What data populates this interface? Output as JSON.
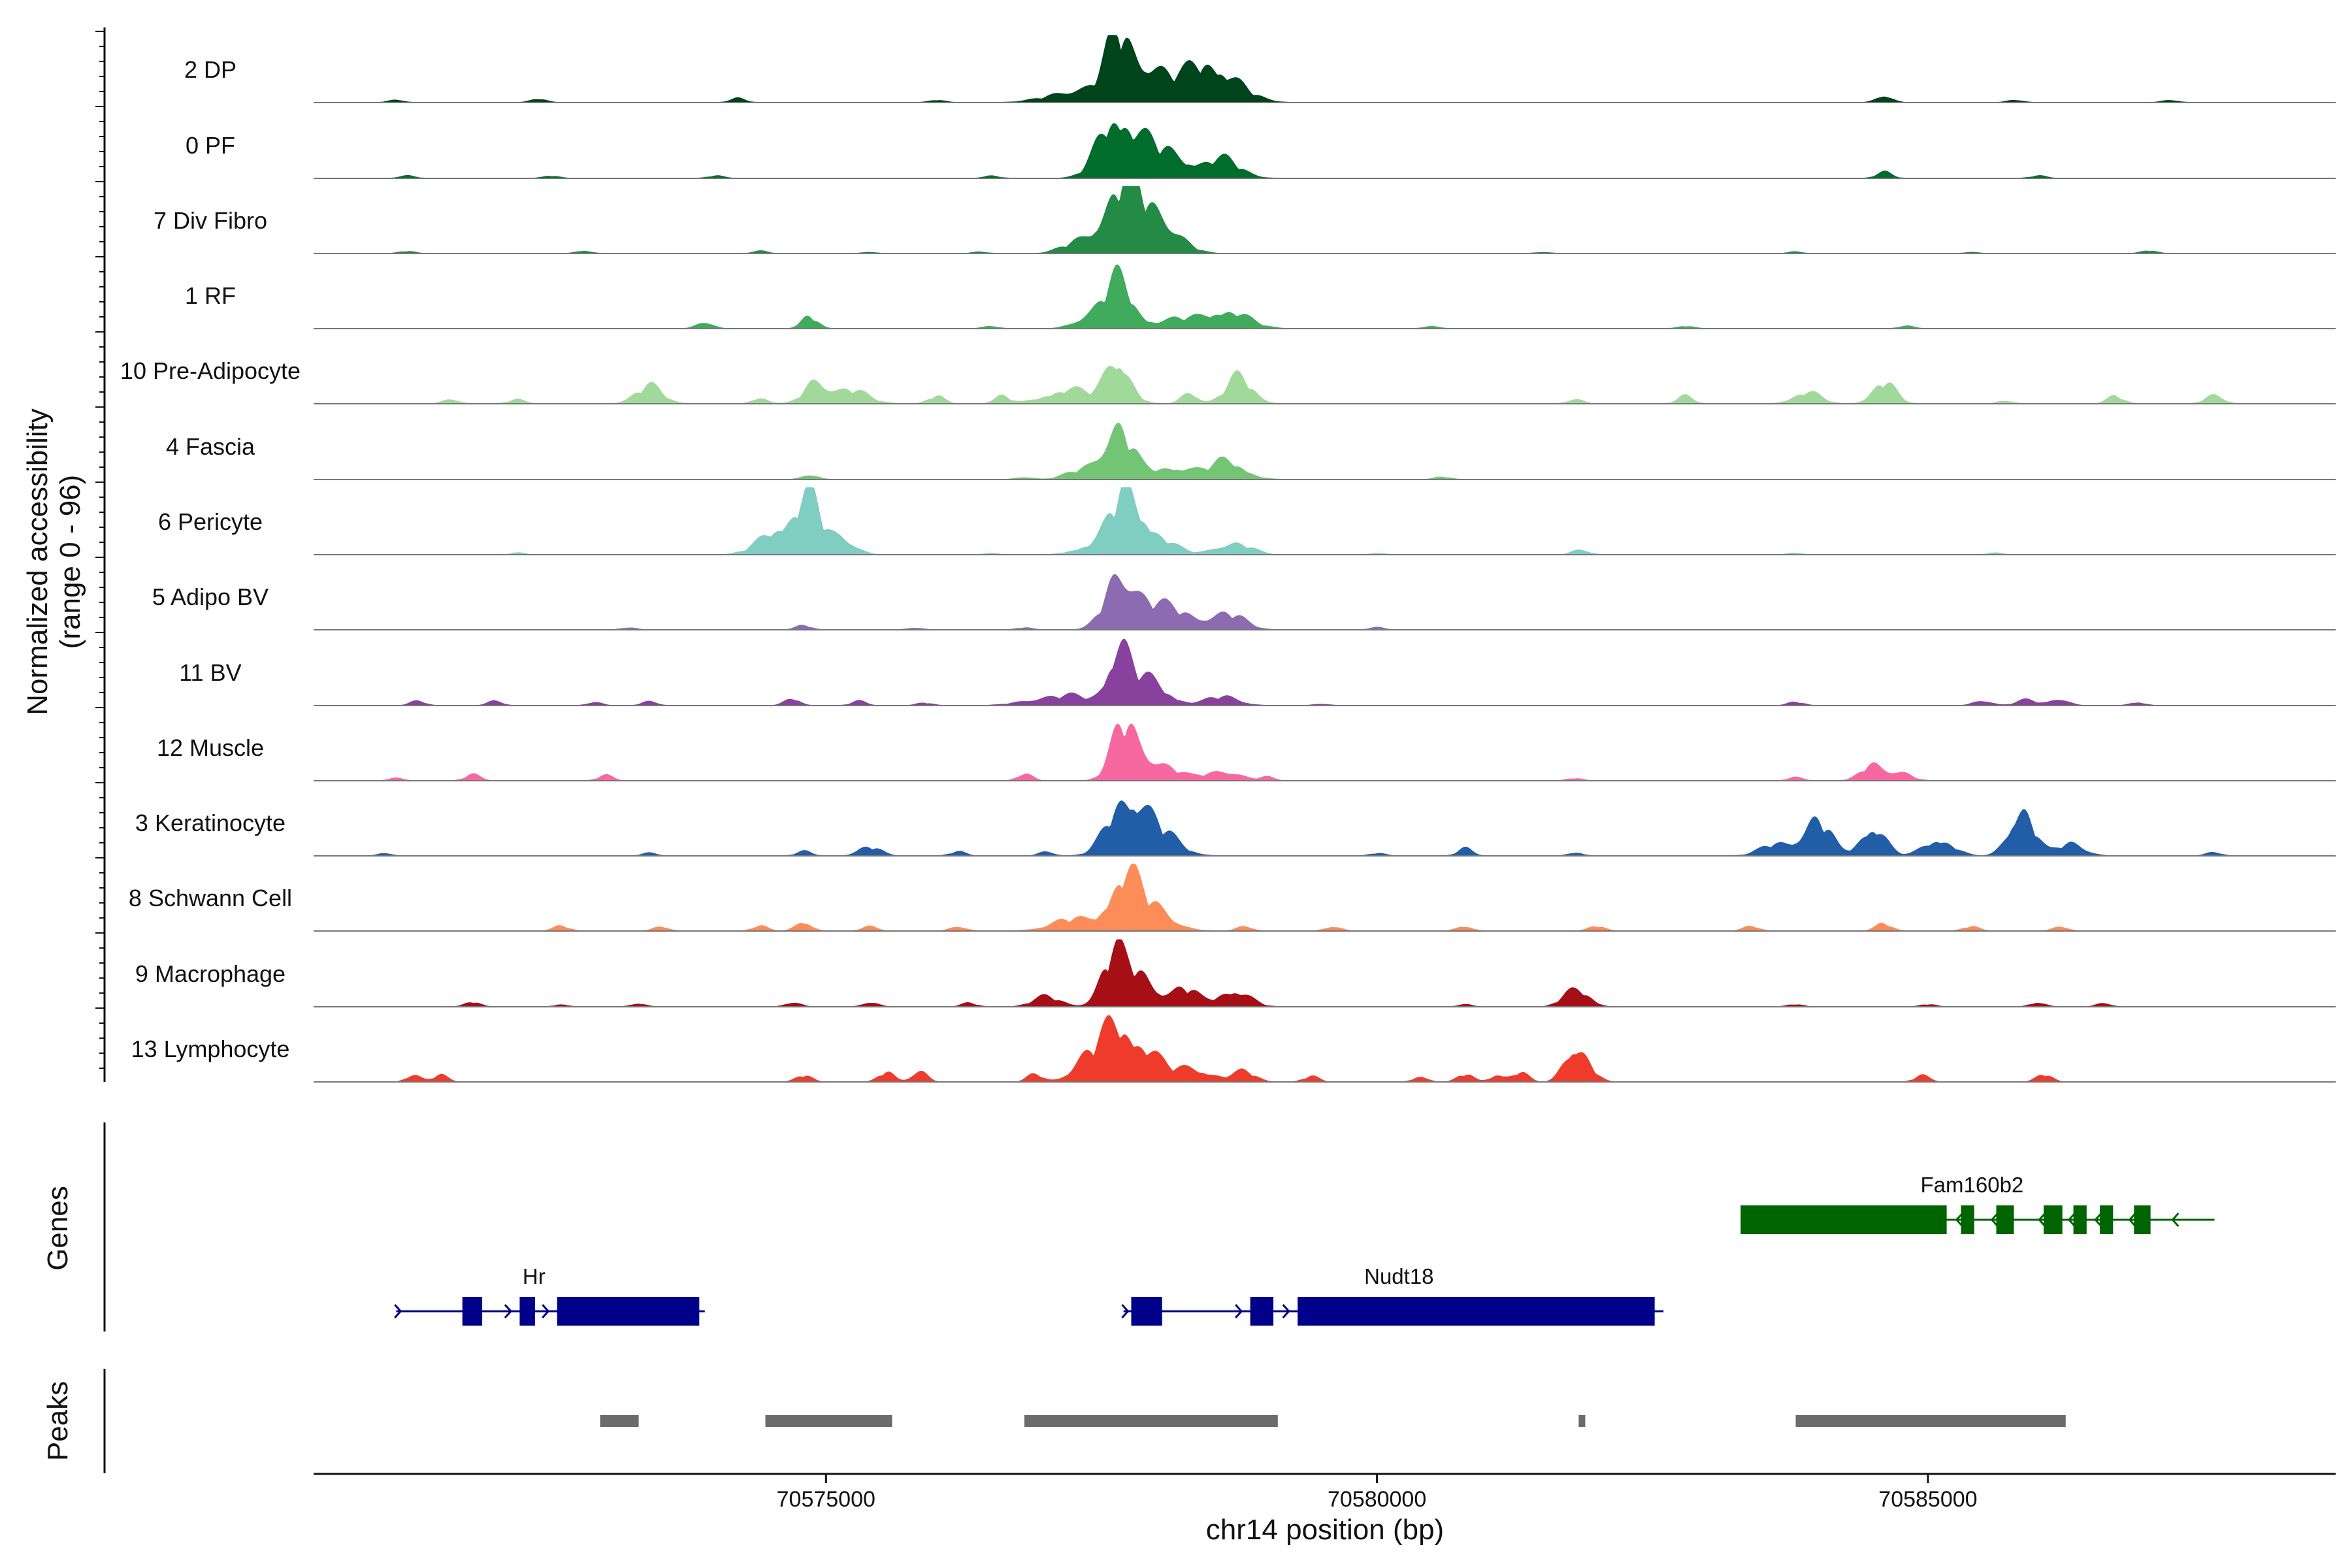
{
  "chart_data": {
    "type": "area",
    "chromosome": "chr14",
    "xlabel": "chr14 position (bp)",
    "xlim": [
      70570350,
      70588700
    ],
    "x_ticks": [
      70575000,
      70580000,
      70585000
    ],
    "x_tick_labels": [
      "70575000",
      "70580000",
      "70585000"
    ],
    "ylabel_line1": "Normalized accessibility",
    "ylabel_line2": "(range 0 - 96)",
    "ylim": [
      0,
      96
    ],
    "genes_label": "Genes",
    "peaks_label": "Peaks",
    "tracks": [
      {
        "name": "2 DP",
        "color": "#00441b",
        "max": 42,
        "peaks": [
          [
            70577650,
            38,
            110
          ],
          [
            70577900,
            30,
            230
          ],
          [
            70578600,
            20,
            200
          ],
          [
            70578400,
            18,
            150
          ],
          [
            70577300,
            10,
            250
          ]
        ],
        "noise": [
          [
            70571100,
            2
          ],
          [
            70572400,
            3
          ],
          [
            70574200,
            3
          ],
          [
            70576000,
            2
          ],
          [
            70584600,
            6
          ],
          [
            70585800,
            2
          ],
          [
            70587200,
            2
          ]
        ]
      },
      {
        "name": "0 PF",
        "color": "#006d2c",
        "max": 44,
        "peaks": [
          [
            70577600,
            40,
            140
          ],
          [
            70577850,
            28,
            220
          ],
          [
            70578600,
            15,
            160
          ],
          [
            70578200,
            10,
            200
          ]
        ],
        "noise": [
          [
            70571200,
            2
          ],
          [
            70572500,
            2
          ],
          [
            70574000,
            2
          ],
          [
            70576500,
            2
          ],
          [
            70584600,
            5
          ],
          [
            70586000,
            2
          ]
        ]
      },
      {
        "name": "7 Div Fibro",
        "color": "#238b45",
        "max": 68,
        "peaks": [
          [
            70577650,
            62,
            150
          ],
          [
            70577850,
            50,
            180
          ],
          [
            70578100,
            25,
            160
          ],
          [
            70577300,
            15,
            150
          ]
        ],
        "noise": [
          [
            70571200,
            3
          ],
          [
            70572800,
            4
          ],
          [
            70574400,
            3
          ],
          [
            70575400,
            2
          ],
          [
            70576400,
            2
          ],
          [
            70581500,
            2
          ],
          [
            70583800,
            2
          ],
          [
            70585400,
            2
          ],
          [
            70587000,
            4
          ]
        ]
      },
      {
        "name": "1 RF",
        "color": "#41ab5d",
        "max": 44,
        "peaks": [
          [
            70577650,
            42,
            130
          ],
          [
            70578650,
            15,
            180
          ],
          [
            70578200,
            8,
            200
          ],
          [
            70577350,
            8,
            120
          ]
        ],
        "noise": [
          [
            70573900,
            6
          ],
          [
            70574850,
            10
          ],
          [
            70576500,
            2
          ],
          [
            70580500,
            2
          ],
          [
            70582800,
            2
          ],
          [
            70584800,
            2
          ]
        ]
      },
      {
        "name": "10 Pre-Adipocyte",
        "color": "#a1d99b",
        "max": 36,
        "peaks": [
          [
            70577650,
            32,
            110
          ],
          [
            70578750,
            18,
            120
          ],
          [
            70577200,
            10,
            200
          ],
          [
            70574900,
            14,
            100
          ],
          [
            70575200,
            10,
            160
          ],
          [
            70573400,
            12,
            120
          ],
          [
            70584600,
            15,
            100
          ],
          [
            70583900,
            8,
            120
          ],
          [
            70587600,
            6,
            80
          ]
        ],
        "noise": [
          [
            70571600,
            3
          ],
          [
            70572200,
            3
          ],
          [
            70574400,
            4
          ],
          [
            70576000,
            5
          ],
          [
            70576600,
            5
          ],
          [
            70578300,
            8
          ],
          [
            70581800,
            3
          ],
          [
            70582800,
            5
          ],
          [
            70585700,
            2
          ],
          [
            70586700,
            5
          ]
        ]
      },
      {
        "name": "4 Fascia",
        "color": "#74c476",
        "max": 42,
        "peaks": [
          [
            70577650,
            40,
            130
          ],
          [
            70578650,
            15,
            150
          ],
          [
            70578150,
            10,
            200
          ],
          [
            70577350,
            8,
            150
          ]
        ],
        "noise": [
          [
            70574850,
            4
          ],
          [
            70576800,
            2
          ],
          [
            70580600,
            2
          ]
        ]
      },
      {
        "name": "6 Pericyte",
        "color": "#80cdc1",
        "max": 64,
        "peaks": [
          [
            70574850,
            60,
            110
          ],
          [
            70574600,
            35,
            180
          ],
          [
            70575150,
            20,
            120
          ],
          [
            70577700,
            58,
            130
          ],
          [
            70577900,
            30,
            200
          ],
          [
            70578700,
            15,
            150
          ],
          [
            70577400,
            10,
            150
          ],
          [
            70581850,
            6,
            80
          ]
        ],
        "noise": [
          [
            70572200,
            2
          ],
          [
            70576500,
            2
          ],
          [
            70580000,
            2
          ],
          [
            70583800,
            2
          ],
          [
            70585600,
            2
          ]
        ]
      },
      {
        "name": "5 Adipo BV",
        "color": "#8c6bb1",
        "max": 50,
        "peaks": [
          [
            70577650,
            45,
            120
          ],
          [
            70577900,
            25,
            200
          ],
          [
            70578650,
            15,
            150
          ],
          [
            70578250,
            12,
            150
          ]
        ],
        "noise": [
          [
            70574800,
            4
          ],
          [
            70573200,
            2
          ],
          [
            70575800,
            2
          ],
          [
            70576800,
            2
          ],
          [
            70580000,
            2
          ]
        ]
      },
      {
        "name": "11 BV",
        "color": "#88419d",
        "max": 58,
        "peaks": [
          [
            70577650,
            55,
            100
          ],
          [
            70577900,
            30,
            180
          ],
          [
            70578600,
            10,
            150
          ],
          [
            70577250,
            10,
            180
          ],
          [
            70576900,
            6,
            180
          ],
          [
            70586200,
            8,
            80
          ],
          [
            70585900,
            6,
            100
          ],
          [
            70585500,
            6,
            80
          ]
        ],
        "noise": [
          [
            70571300,
            5
          ],
          [
            70572000,
            5
          ],
          [
            70572900,
            4
          ],
          [
            70573400,
            5
          ],
          [
            70574700,
            8
          ],
          [
            70575300,
            5
          ],
          [
            70575900,
            3
          ],
          [
            70579500,
            2
          ],
          [
            70583800,
            4
          ],
          [
            70586900,
            4
          ]
        ]
      },
      {
        "name": "12 Muscle",
        "color": "#f768a1",
        "max": 62,
        "peaks": [
          [
            70577700,
            58,
            110
          ],
          [
            70577950,
            25,
            200
          ],
          [
            70578600,
            12,
            150
          ],
          [
            70584500,
            20,
            100
          ],
          [
            70584750,
            10,
            100
          ]
        ],
        "noise": [
          [
            70571100,
            3
          ],
          [
            70571800,
            8
          ],
          [
            70573000,
            6
          ],
          [
            70576800,
            8
          ],
          [
            70579000,
            4
          ],
          [
            70581800,
            3
          ],
          [
            70583800,
            4
          ]
        ]
      },
      {
        "name": "3 Keratinocyte",
        "color": "#225ea8",
        "max": 60,
        "peaks": [
          [
            70577700,
            55,
            150
          ],
          [
            70577950,
            35,
            200
          ],
          [
            70584000,
            40,
            120
          ],
          [
            70584500,
            35,
            110
          ],
          [
            70585100,
            20,
            130
          ],
          [
            70585850,
            58,
            110
          ],
          [
            70586300,
            15,
            120
          ],
          [
            70583650,
            15,
            150
          ],
          [
            70575400,
            10,
            100
          ]
        ],
        "noise": [
          [
            70571000,
            3
          ],
          [
            70573400,
            3
          ],
          [
            70574800,
            5
          ],
          [
            70576200,
            5
          ],
          [
            70577000,
            5
          ],
          [
            70580000,
            3
          ],
          [
            70580800,
            8
          ],
          [
            70581800,
            4
          ],
          [
            70587600,
            4
          ]
        ]
      },
      {
        "name": "8 Schwann Cell",
        "color": "#fc8d59",
        "max": 44,
        "peaks": [
          [
            70577700,
            42,
            130
          ],
          [
            70577950,
            20,
            180
          ],
          [
            70577250,
            10,
            200
          ]
        ],
        "noise": [
          [
            70572600,
            4
          ],
          [
            70573500,
            4
          ],
          [
            70574400,
            4
          ],
          [
            70574800,
            8
          ],
          [
            70575400,
            4
          ],
          [
            70576200,
            4
          ],
          [
            70578800,
            4
          ],
          [
            70579600,
            4
          ],
          [
            70580800,
            4
          ],
          [
            70582000,
            4
          ],
          [
            70583400,
            4
          ],
          [
            70584600,
            6
          ],
          [
            70585400,
            4
          ],
          [
            70586200,
            4
          ]
        ]
      },
      {
        "name": "9 Macrophage",
        "color": "#a50f15",
        "max": 84,
        "peaks": [
          [
            70577600,
            80,
            110
          ],
          [
            70577850,
            55,
            130
          ],
          [
            70578250,
            30,
            120
          ],
          [
            70578700,
            28,
            140
          ],
          [
            70577000,
            16,
            130
          ],
          [
            70581850,
            25,
            100
          ],
          [
            70581700,
            10,
            80
          ]
        ],
        "noise": [
          [
            70571800,
            8
          ],
          [
            70572600,
            4
          ],
          [
            70573300,
            6
          ],
          [
            70574700,
            8
          ],
          [
            70575400,
            8
          ],
          [
            70576300,
            6
          ],
          [
            70580800,
            4
          ],
          [
            70583800,
            4
          ],
          [
            70585000,
            4
          ],
          [
            70586000,
            8
          ],
          [
            70586600,
            6
          ]
        ]
      },
      {
        "name": "13 Lymphocyte",
        "color": "#ef3b2c",
        "max": 94,
        "peaks": [
          [
            70577650,
            90,
            130
          ],
          [
            70577400,
            45,
            150
          ],
          [
            70577900,
            50,
            130
          ],
          [
            70578300,
            25,
            200
          ],
          [
            70578800,
            18,
            100
          ],
          [
            70581850,
            50,
            100
          ],
          [
            70581750,
            30,
            80
          ]
        ],
        "noise": [
          [
            70571250,
            12
          ],
          [
            70571500,
            12
          ],
          [
            70574800,
            12
          ],
          [
            70575550,
            18
          ],
          [
            70575850,
            22
          ],
          [
            70576900,
            14
          ],
          [
            70579400,
            10
          ],
          [
            70580400,
            10
          ],
          [
            70580800,
            14
          ],
          [
            70581100,
            14
          ],
          [
            70581300,
            18
          ],
          [
            70584950,
            12
          ],
          [
            70586050,
            14
          ]
        ]
      }
    ],
    "genes": [
      {
        "name": "Fam160b2",
        "strand": "-",
        "color": "#006400",
        "row": 1,
        "start": 70583300,
        "end": 70587600,
        "label_pos": 70585400,
        "exons": [
          [
            70583300,
            70585170
          ],
          [
            70585300,
            70585420
          ],
          [
            70585620,
            70585780
          ],
          [
            70586050,
            70586220
          ],
          [
            70586320,
            70586440
          ],
          [
            70586560,
            70586680
          ],
          [
            70586870,
            70587020
          ]
        ]
      },
      {
        "name": "Hr",
        "strand": "+",
        "color": "#00008b",
        "row": 2,
        "start": 70571100,
        "end": 70573900,
        "label_pos": 70572350,
        "exons": [
          [
            70571700,
            70571880
          ],
          [
            70572220,
            70572360
          ],
          [
            70572560,
            70573850
          ]
        ]
      },
      {
        "name": "Nudt18",
        "strand": "+",
        "color": "#00008b",
        "row": 2,
        "start": 70577700,
        "end": 70582600,
        "label_pos": 70580200,
        "exons": [
          [
            70577770,
            70578050
          ],
          [
            70578850,
            70579060
          ],
          [
            70579280,
            70582520
          ]
        ]
      }
    ],
    "peaks": [
      [
        70572950,
        70573300
      ],
      [
        70574450,
        70575600
      ],
      [
        70576800,
        70579100
      ],
      [
        70581830,
        70581890
      ],
      [
        70583800,
        70586250
      ]
    ]
  }
}
